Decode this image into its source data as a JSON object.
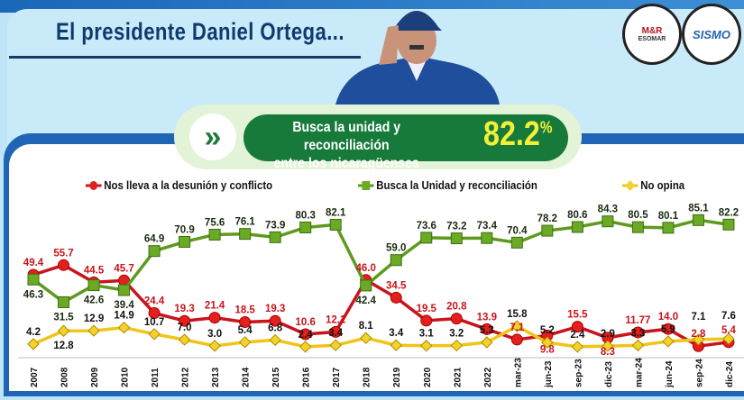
{
  "header": {
    "title": "El presidente Daniel Ortega..."
  },
  "logos": [
    {
      "text": "M&R Consultores ESOMAR"
    },
    {
      "text": "SISMO"
    }
  ],
  "highlight": {
    "icon": "double-chevron-right-icon",
    "text_line1": "Busca la unidad y reconciliación",
    "text_line2": "entre los nicaragüenses",
    "value": "82.2",
    "unit": "%"
  },
  "chart_data": {
    "type": "line",
    "categories": [
      "2007",
      "2008",
      "2009",
      "2010",
      "2011",
      "2012",
      "2013",
      "2014",
      "2015",
      "2016",
      "2017",
      "2018",
      "2019",
      "2020",
      "2021",
      "2022",
      "mar-23",
      "jun-23",
      "sep-23",
      "dic-23",
      "mar-24",
      "jun-24",
      "sep-24",
      "dic-24"
    ],
    "legend_position": "top",
    "grid": false,
    "series": [
      {
        "name": "Nos lleva a la desunión y conflicto",
        "color": "#c8141c",
        "marker": "circle",
        "values": [
          49.4,
          55.7,
          44.5,
          45.7,
          24.4,
          19.3,
          21.4,
          18.5,
          19.3,
          10.6,
          12.1,
          46.0,
          34.5,
          19.5,
          20.8,
          13.9,
          7.1,
          9.8,
          15.5,
          8.3,
          11.77,
          14.0,
          2.8,
          5.4
        ],
        "labels": [
          "49.4",
          "55.7",
          "44.5",
          "45.7",
          "24.4",
          "19.3",
          "21.4",
          "18.5",
          "19.3",
          "10.6",
          "12.1",
          "46.0",
          "34.5",
          "19.5",
          "20.8",
          "13.9",
          "7.1",
          "9.8",
          "15.5",
          "8.3",
          "11.77",
          "14.0",
          "2.8",
          "5.4"
        ]
      },
      {
        "name": "Busca la Unidad y reconciliación",
        "color": "#5e9a1e",
        "marker": "square",
        "values": [
          46.3,
          31.5,
          42.6,
          39.4,
          64.9,
          70.9,
          75.6,
          76.1,
          73.9,
          80.3,
          82.1,
          42.4,
          59.0,
          73.6,
          73.2,
          73.4,
          70.4,
          78.2,
          80.6,
          84.3,
          80.5,
          80.1,
          85.1,
          82.2
        ],
        "labels": [
          "46.3",
          "31.5",
          "42.6",
          "39.4",
          "64.9",
          "70.9",
          "75.6",
          "76.1",
          "73.9",
          "80.3",
          "82.1",
          "42.4",
          "59.0",
          "73.6",
          "73.2",
          "73.4",
          "70.4",
          "78.2",
          "80.6",
          "84.3",
          "80.5",
          "80.1",
          "85.1",
          "82.2"
        ]
      },
      {
        "name": "No opina",
        "color": "#f0c419",
        "marker": "diamond",
        "values": [
          4.2,
          12.8,
          12.9,
          14.9,
          10.7,
          7.0,
          3.0,
          5.4,
          6.8,
          2.4,
          3.4,
          8.1,
          3.4,
          3.1,
          3.2,
          5.3,
          15.8,
          5.2,
          2.4,
          2.9,
          3.3,
          5.9,
          7.1,
          7.6
        ],
        "labels": [
          "4.2",
          "12.8",
          "12.9",
          "14.9",
          "10.7",
          "7.0",
          "3.0",
          "5.4",
          "6.8",
          "2.4",
          "3.4",
          "8.1",
          "3.4",
          "3.1",
          "3.2",
          "5.3",
          "15.8",
          "5.2",
          "2.4",
          "2.9",
          "3.3",
          "5.9",
          "7.1",
          "7.6"
        ]
      }
    ]
  }
}
